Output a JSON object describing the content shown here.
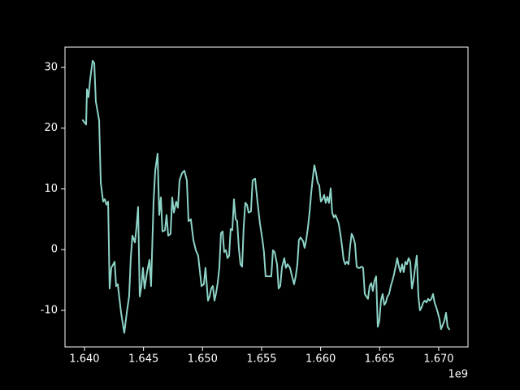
{
  "chart_data": {
    "type": "line",
    "x_offset_label": "1e9",
    "color": "#8dd3c7",
    "xlim": [
      1.63835,
      1.67248
    ],
    "ylim": [
      -16.02,
      33.34
    ],
    "xticks": [
      {
        "value": 1.64,
        "label": "1.640"
      },
      {
        "value": 1.645,
        "label": "1.645"
      },
      {
        "value": 1.65,
        "label": "1.650"
      },
      {
        "value": 1.655,
        "label": "1.655"
      },
      {
        "value": 1.66,
        "label": "1.660"
      },
      {
        "value": 1.665,
        "label": "1.665"
      },
      {
        "value": 1.67,
        "label": "1.670"
      }
    ],
    "yticks": [
      -10,
      0,
      10,
      20,
      30
    ],
    "grid": false,
    "x": [
      1.63986,
      1.64014,
      1.64021,
      1.64034,
      1.64048,
      1.64069,
      1.64083,
      1.64096,
      1.64124,
      1.64138,
      1.64158,
      1.64172,
      1.64186,
      1.642,
      1.64213,
      1.64227,
      1.64255,
      1.64268,
      1.64282,
      1.6431,
      1.64337,
      1.64358,
      1.64378,
      1.64392,
      1.64406,
      1.64427,
      1.6444,
      1.64454,
      1.64468,
      1.64482,
      1.64495,
      1.64509,
      1.6453,
      1.6455,
      1.64564,
      1.64585,
      1.64599,
      1.64619,
      1.64633,
      1.64647,
      1.6466,
      1.64681,
      1.64695,
      1.64709,
      1.64729,
      1.64743,
      1.64757,
      1.64777,
      1.64791,
      1.64805,
      1.64826,
      1.64846,
      1.64867,
      1.64881,
      1.64901,
      1.64922,
      1.64943,
      1.64963,
      1.64991,
      1.65011,
      1.65025,
      1.65046,
      1.6506,
      1.65073,
      1.65087,
      1.65101,
      1.65115,
      1.65128,
      1.65142,
      1.65156,
      1.6517,
      1.65183,
      1.65197,
      1.65211,
      1.65225,
      1.65238,
      1.65252,
      1.65266,
      1.6528,
      1.65293,
      1.65307,
      1.65321,
      1.65335,
      1.65348,
      1.65362,
      1.65376,
      1.6539,
      1.6541,
      1.65424,
      1.65445,
      1.65465,
      1.65486,
      1.65507,
      1.6552,
      1.65534,
      1.65555,
      1.65582,
      1.65596,
      1.6561,
      1.65631,
      1.65644,
      1.65658,
      1.65672,
      1.65692,
      1.65706,
      1.6572,
      1.65741,
      1.65754,
      1.65775,
      1.65789,
      1.65803,
      1.65816,
      1.6583,
      1.65851,
      1.65864,
      1.65878,
      1.65892,
      1.65906,
      1.6592,
      1.65933,
      1.65947,
      1.65961,
      1.65975,
      1.65988,
      1.66002,
      1.66016,
      1.6603,
      1.66043,
      1.66057,
      1.66071,
      1.66085,
      1.66098,
      1.66112,
      1.66126,
      1.6614,
      1.66153,
      1.66167,
      1.66181,
      1.66195,
      1.66208,
      1.66222,
      1.66236,
      1.6625,
      1.66263,
      1.66277,
      1.66291,
      1.66305,
      1.66318,
      1.66332,
      1.66346,
      1.6636,
      1.66374,
      1.66387,
      1.66401,
      1.66415,
      1.66429,
      1.66442,
      1.66456,
      1.6647,
      1.66484,
      1.66497,
      1.66511,
      1.66525,
      1.66539,
      1.66552,
      1.66566,
      1.6658,
      1.66594,
      1.66608,
      1.66621,
      1.66635,
      1.66649,
      1.66663,
      1.66676,
      1.6669,
      1.66704,
      1.66718,
      1.66731,
      1.66745,
      1.66759,
      1.66773,
      1.66786,
      1.668,
      1.66814,
      1.66828,
      1.66841,
      1.66855,
      1.66869,
      1.66883,
      1.66896,
      1.6691,
      1.66924,
      1.66938,
      1.66952,
      1.66965,
      1.66979,
      1.66993,
      1.67007,
      1.6702,
      1.67034,
      1.67048,
      1.67062,
      1.67075,
      1.67089
    ],
    "values": [
      21.3,
      20.6,
      26.4,
      25.1,
      28.0,
      31.1,
      30.7,
      24.4,
      21.3,
      11.0,
      7.9,
      8.3,
      7.4,
      7.9,
      -6.4,
      -3.0,
      -2.0,
      -6.0,
      -5.7,
      -10.4,
      -13.7,
      -10.4,
      -7.7,
      -1.4,
      2.3,
      1.2,
      3.6,
      7.0,
      -7.7,
      -6.0,
      -3.0,
      -6.4,
      -3.7,
      -1.7,
      -6.0,
      7.9,
      13.0,
      15.8,
      5.7,
      8.6,
      3.0,
      3.2,
      5.7,
      2.3,
      2.6,
      8.6,
      6.1,
      7.9,
      6.9,
      11.4,
      12.6,
      13.0,
      11.4,
      4.7,
      5.0,
      1.6,
      -0.1,
      -1.0,
      -6.0,
      -5.7,
      -3.0,
      -8.4,
      -7.7,
      -6.4,
      -6.0,
      -8.4,
      -7.1,
      -5.5,
      -3.0,
      2.7,
      3.0,
      -0.4,
      -0.1,
      -1.4,
      -1.0,
      3.4,
      3.2,
      8.3,
      5.0,
      4.7,
      0.3,
      -2.4,
      -2.8,
      3.6,
      7.7,
      7.4,
      6.1,
      6.3,
      11.4,
      11.7,
      7.9,
      4.3,
      1.6,
      -0.4,
      -4.4,
      -4.4,
      -4.4,
      -0.1,
      -0.4,
      -2.4,
      -6.4,
      -6.0,
      -3.0,
      -1.4,
      -3.0,
      -2.4,
      -3.0,
      -4.1,
      -5.7,
      -4.4,
      -2.4,
      1.6,
      2.0,
      1.4,
      0.3,
      1.6,
      3.6,
      6.1,
      9.3,
      11.7,
      13.9,
      12.6,
      11.0,
      10.6,
      7.9,
      8.3,
      9.0,
      7.7,
      8.7,
      7.7,
      10.1,
      6.1,
      5.3,
      5.7,
      5.0,
      4.3,
      2.6,
      0.6,
      -1.7,
      -2.4,
      -2.0,
      -2.4,
      0.6,
      2.6,
      2.0,
      1.0,
      -2.8,
      -3.0,
      -3.0,
      -2.8,
      -3.0,
      -7.3,
      -7.7,
      -8.1,
      -6.0,
      -5.5,
      -6.8,
      -5.1,
      -4.4,
      -12.7,
      -11.7,
      -8.4,
      -7.3,
      -9.1,
      -8.7,
      -7.7,
      -7.3,
      -6.0,
      -5.1,
      -4.1,
      -2.8,
      -1.4,
      -2.8,
      -3.7,
      -2.4,
      -3.7,
      -2.0,
      -2.4,
      -1.4,
      -2.0,
      -6.4,
      -5.1,
      -3.0,
      -1.0,
      -7.7,
      -10.0,
      -9.5,
      -8.7,
      -8.4,
      -8.7,
      -8.1,
      -8.4,
      -8.1,
      -7.3,
      -8.7,
      -9.5,
      -10.4,
      -11.5,
      -13.1,
      -12.4,
      -11.7,
      -10.4,
      -12.7,
      -13.1
    ]
  }
}
